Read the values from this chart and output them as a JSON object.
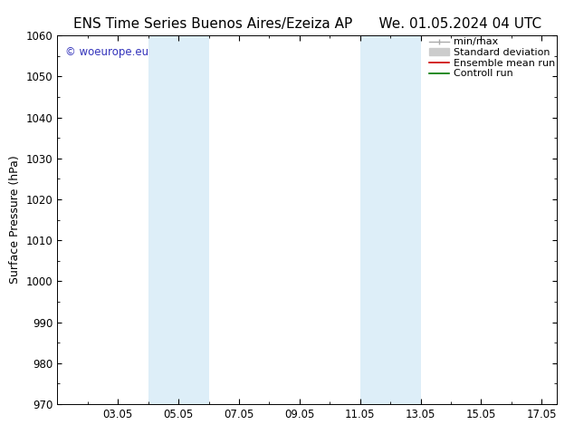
{
  "title_left": "ENS Time Series Buenos Aires/Ezeiza AP",
  "title_right": "We. 01.05.2024 04 UTC",
  "ylabel": "Surface Pressure (hPa)",
  "ylim": [
    970,
    1060
  ],
  "yticks": [
    970,
    980,
    990,
    1000,
    1010,
    1020,
    1030,
    1040,
    1050,
    1060
  ],
  "xlim": [
    1.0,
    17.5
  ],
  "xtick_labels": [
    "03.05",
    "05.05",
    "07.05",
    "09.05",
    "11.05",
    "13.05",
    "15.05",
    "17.05"
  ],
  "xtick_positions": [
    3,
    5,
    7,
    9,
    11,
    13,
    15,
    17
  ],
  "watermark": "© woeurope.eu",
  "watermark_color": "#3333bb",
  "shaded_regions": [
    {
      "x_start": 4.0,
      "x_end": 6.0,
      "color": "#ddeef8"
    },
    {
      "x_start": 11.0,
      "x_end": 13.0,
      "color": "#ddeef8"
    }
  ],
  "legend_entries": [
    {
      "label": "min/max",
      "color": "#aaaaaa",
      "lw": 1.0,
      "type": "minmax"
    },
    {
      "label": "Standard deviation",
      "color": "#cccccc",
      "lw": 5,
      "type": "band"
    },
    {
      "label": "Ensemble mean run",
      "color": "#cc0000",
      "lw": 1.2,
      "type": "line"
    },
    {
      "label": "Controll run",
      "color": "#007700",
      "lw": 1.2,
      "type": "line"
    }
  ],
  "bg_color": "#ffffff",
  "title_fontsize": 11,
  "legend_fontsize": 8,
  "axis_label_fontsize": 9,
  "tick_fontsize": 8.5
}
